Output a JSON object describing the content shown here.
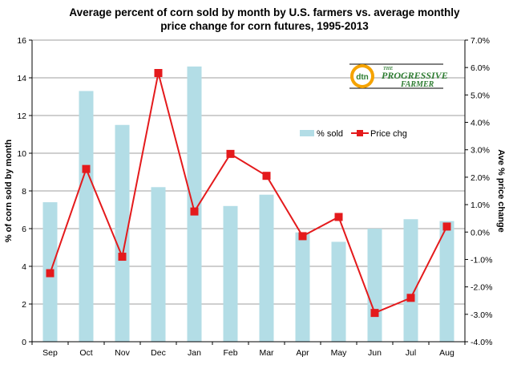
{
  "chart_data": {
    "type": "bar+line",
    "title_line1": "Average percent of corn sold by month by U.S. farmers vs. average monthly",
    "title_line2": "price change for corn futures, 1995-2013",
    "categories": [
      "Sep",
      "Oct",
      "Nov",
      "Dec",
      "Jan",
      "Feb",
      "Mar",
      "Apr",
      "May",
      "Jun",
      "Jul",
      "Aug"
    ],
    "series": [
      {
        "name": "% sold",
        "type": "bar",
        "axis": "left",
        "color": "#b3dde6",
        "values": [
          7.4,
          13.3,
          11.5,
          8.2,
          14.6,
          7.2,
          7.8,
          5.8,
          5.3,
          6.0,
          6.5,
          6.4
        ]
      },
      {
        "name": "Price chg",
        "type": "line",
        "axis": "right",
        "color": "#e41a1c",
        "values": [
          -1.5,
          2.3,
          -0.9,
          5.8,
          0.75,
          2.85,
          2.05,
          -0.15,
          0.55,
          -2.95,
          -2.4,
          0.2
        ]
      }
    ],
    "y_left": {
      "label": "% of corn sold by month",
      "min": 0,
      "max": 16,
      "ticks": [
        "0",
        "2",
        "4",
        "6",
        "8",
        "10",
        "12",
        "14",
        "16"
      ]
    },
    "y_right": {
      "label": "Ave % price change",
      "min": -4,
      "max": 7,
      "ticks": [
        "-4.0%",
        "-3.0%",
        "-2.0%",
        "-1.0%",
        "0.0%",
        "1.0%",
        "2.0%",
        "3.0%",
        "4.0%",
        "5.0%",
        "6.0%",
        "7.0%"
      ]
    },
    "grid": "horizontal",
    "legend_position": "upper-right"
  },
  "logo": {
    "name": "dtn-progressive-farmer-logo",
    "mark": "dtn",
    "line1": "THE",
    "line2": "PROGRESSIVE",
    "line3": "FARMER"
  }
}
